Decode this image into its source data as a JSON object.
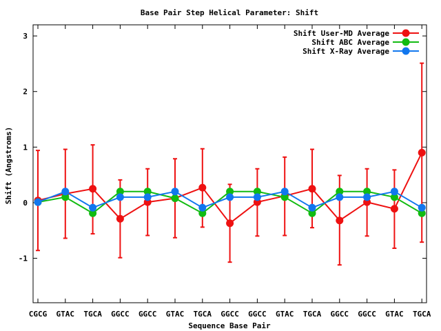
{
  "chart_data": {
    "type": "line",
    "title": "Base Pair Step Helical Parameter: Shift",
    "xlabel": "Sequence Base Pair",
    "ylabel": "Shift (Angstroms)",
    "ylim": [
      -1.8,
      3.2
    ],
    "yticks": [
      -1,
      0,
      1,
      2,
      3
    ],
    "categories": [
      "CGCG",
      "GTAC",
      "TGCA",
      "GGCC",
      "GGCC",
      "GTAC",
      "TGCA",
      "GGCC",
      "GGCC",
      "GTAC",
      "TGCA",
      "GGCC",
      "GGCC",
      "GTAC",
      "TGCA"
    ],
    "grid": false,
    "legend_position": "top-right",
    "series": [
      {
        "name": "Shift User-MD Average",
        "color": "#ee1111",
        "values": [
          0.04,
          0.16,
          0.25,
          -0.29,
          0.01,
          0.08,
          0.27,
          -0.37,
          0.01,
          0.12,
          0.25,
          -0.32,
          0.01,
          -0.11,
          0.9
        ],
        "error_low": [
          -0.86,
          -0.64,
          -0.56,
          -0.99,
          -0.59,
          -0.63,
          -0.44,
          -1.07,
          -0.6,
          -0.59,
          -0.45,
          -1.12,
          -0.6,
          -0.82,
          -0.71
        ],
        "error_high": [
          0.94,
          0.96,
          1.04,
          0.41,
          0.61,
          0.79,
          0.97,
          0.33,
          0.61,
          0.82,
          0.96,
          0.49,
          0.61,
          0.59,
          2.51
        ]
      },
      {
        "name": "Shift ABC Average",
        "color": "#11bb11",
        "values": [
          0.01,
          0.1,
          -0.19,
          0.2,
          0.2,
          0.08,
          -0.19,
          0.2,
          0.2,
          0.1,
          -0.19,
          0.2,
          0.2,
          0.1,
          -0.19
        ]
      },
      {
        "name": "Shift X-Ray Average",
        "color": "#1177ee",
        "values": [
          0.01,
          0.2,
          -0.09,
          0.1,
          0.1,
          0.2,
          -0.09,
          0.1,
          0.1,
          0.2,
          -0.09,
          0.1,
          0.1,
          0.2,
          -0.09
        ]
      }
    ]
  }
}
